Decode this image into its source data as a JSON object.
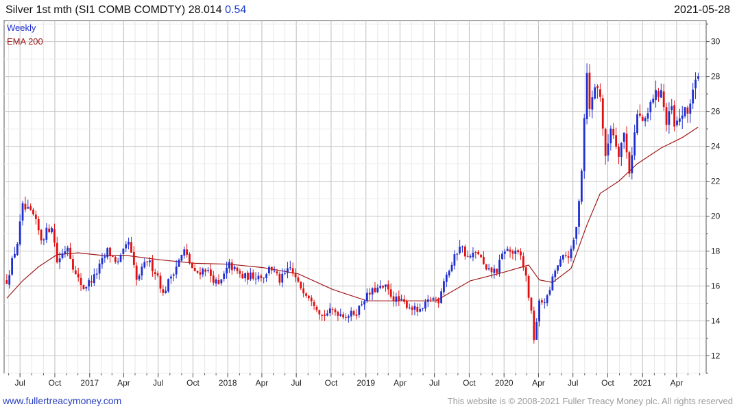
{
  "header": {
    "title": "Silver 1st mth (SI1 COMB COMDTY) 28.014",
    "change": "0.54",
    "date": "2021-05-28"
  },
  "footer": {
    "link_text": "www.fullertreacymoney.com",
    "copyright": "This website is © 2008-2021 Fuller Treacy Money plc. All rights reserved"
  },
  "colors": {
    "up_candle": "#1f2fd0",
    "down_candle": "#e01010",
    "ema": "#a01818",
    "legend_weekly": "#1f2fd0",
    "legend_ema": "#a01818",
    "grid": "#c8c8c8"
  },
  "chart_data": {
    "type": "candlestick",
    "title": "Silver 1st mth (SI1 COMB COMDTY)",
    "frequency": "Weekly",
    "legend": [
      "Weekly",
      "EMA 200"
    ],
    "legend_position": "top-left",
    "x_tick_labels": [
      "Jul",
      "Oct",
      "2017",
      "Apr",
      "Jul",
      "Oct",
      "2018",
      "Apr",
      "Jul",
      "Oct",
      "2019",
      "Apr",
      "Jul",
      "Oct",
      "2020",
      "Apr",
      "Jul",
      "Oct",
      "2021",
      "Apr"
    ],
    "y_ticks": [
      12,
      14,
      16,
      18,
      20,
      22,
      24,
      26,
      28,
      30
    ],
    "ylim": [
      11,
      31.2
    ],
    "grid": true,
    "y_axis_side": "right",
    "price_anchors": [
      [
        "2016-05-27",
        16.3
      ],
      [
        "2016-06-24",
        18.5
      ],
      [
        "2016-07-08",
        20.5
      ],
      [
        "2016-08-05",
        20.0
      ],
      [
        "2016-08-26",
        18.7
      ],
      [
        "2016-09-23",
        19.5
      ],
      [
        "2016-10-07",
        17.4
      ],
      [
        "2016-11-04",
        18.3
      ],
      [
        "2016-11-25",
        16.6
      ],
      [
        "2016-12-16",
        15.9
      ],
      [
        "2017-01-13",
        16.5
      ],
      [
        "2017-02-17",
        18.0
      ],
      [
        "2017-03-17",
        17.3
      ],
      [
        "2017-04-14",
        18.5
      ],
      [
        "2017-05-05",
        16.3
      ],
      [
        "2017-06-02",
        17.5
      ],
      [
        "2017-06-30",
        16.6
      ],
      [
        "2017-07-14",
        15.5
      ],
      [
        "2017-08-04",
        16.6
      ],
      [
        "2017-09-08",
        18.0
      ],
      [
        "2017-10-06",
        16.7
      ],
      [
        "2017-11-03",
        17.0
      ],
      [
        "2017-12-08",
        16.0
      ],
      [
        "2018-01-05",
        17.2
      ],
      [
        "2018-02-09",
        16.5
      ],
      [
        "2018-03-09",
        16.6
      ],
      [
        "2018-04-13",
        16.6
      ],
      [
        "2018-04-20",
        17.2
      ],
      [
        "2018-05-18",
        16.3
      ],
      [
        "2018-06-15",
        17.0
      ],
      [
        "2018-07-06",
        16.1
      ],
      [
        "2018-08-10",
        15.3
      ],
      [
        "2018-09-07",
        14.3
      ],
      [
        "2018-10-05",
        14.6
      ],
      [
        "2018-11-09",
        14.3
      ],
      [
        "2018-12-07",
        14.5
      ],
      [
        "2018-12-28",
        15.3
      ],
      [
        "2019-01-25",
        15.8
      ],
      [
        "2019-02-22",
        15.9
      ],
      [
        "2019-03-15",
        15.3
      ],
      [
        "2019-04-12",
        15.0
      ],
      [
        "2019-05-24",
        14.5
      ],
      [
        "2019-06-21",
        15.3
      ],
      [
        "2019-07-12",
        15.2
      ],
      [
        "2019-07-26",
        16.4
      ],
      [
        "2019-08-16",
        17.2
      ],
      [
        "2019-09-06",
        18.4
      ],
      [
        "2019-09-27",
        17.6
      ],
      [
        "2019-10-25",
        17.9
      ],
      [
        "2019-11-15",
        16.8
      ],
      [
        "2019-12-13",
        16.9
      ],
      [
        "2020-01-03",
        18.1
      ],
      [
        "2020-02-14",
        17.7
      ],
      [
        "2020-02-28",
        16.5
      ],
      [
        "2020-03-13",
        14.4
      ],
      [
        "2020-03-20",
        13.0
      ],
      [
        "2020-04-03",
        15.0
      ],
      [
        "2020-04-24",
        15.3
      ],
      [
        "2020-05-15",
        16.9
      ],
      [
        "2020-06-05",
        17.6
      ],
      [
        "2020-06-26",
        17.9
      ],
      [
        "2020-07-10",
        19.3
      ],
      [
        "2020-07-24",
        22.8
      ],
      [
        "2020-08-07",
        28.5
      ],
      [
        "2020-08-14",
        26.0
      ],
      [
        "2020-08-28",
        27.5
      ],
      [
        "2020-09-11",
        27.0
      ],
      [
        "2020-09-25",
        23.2
      ],
      [
        "2020-10-09",
        25.2
      ],
      [
        "2020-10-30",
        23.7
      ],
      [
        "2020-11-13",
        24.7
      ],
      [
        "2020-11-27",
        22.6
      ],
      [
        "2020-12-18",
        25.8
      ],
      [
        "2021-01-08",
        25.3
      ],
      [
        "2021-01-29",
        26.9
      ],
      [
        "2021-02-05",
        26.9
      ],
      [
        "2021-02-19",
        27.3
      ],
      [
        "2021-03-05",
        25.2
      ],
      [
        "2021-03-19",
        26.2
      ],
      [
        "2021-03-26",
        25.0
      ],
      [
        "2021-04-16",
        25.9
      ],
      [
        "2021-04-30",
        25.9
      ],
      [
        "2021-05-14",
        27.3
      ],
      [
        "2021-05-28",
        28.0
      ]
    ],
    "ema_points": [
      [
        "2016-05-27",
        15.3
      ],
      [
        "2016-07-08",
        16.3
      ],
      [
        "2016-08-19",
        17.1
      ],
      [
        "2016-10-07",
        17.8
      ],
      [
        "2016-12-02",
        17.9
      ],
      [
        "2017-02-03",
        17.75
      ],
      [
        "2017-04-07",
        17.75
      ],
      [
        "2017-07-07",
        17.5
      ],
      [
        "2017-10-06",
        17.3
      ],
      [
        "2018-01-05",
        17.25
      ],
      [
        "2018-04-06",
        17.05
      ],
      [
        "2018-07-06",
        16.7
      ],
      [
        "2018-10-05",
        15.8
      ],
      [
        "2019-01-04",
        15.15
      ],
      [
        "2019-04-05",
        15.15
      ],
      [
        "2019-07-05",
        15.15
      ],
      [
        "2019-10-04",
        16.3
      ],
      [
        "2020-01-03",
        16.8
      ],
      [
        "2020-03-06",
        17.2
      ],
      [
        "2020-04-03",
        16.35
      ],
      [
        "2020-05-08",
        16.2
      ],
      [
        "2020-06-26",
        17.0
      ],
      [
        "2020-08-07",
        19.5
      ],
      [
        "2020-09-11",
        21.3
      ],
      [
        "2020-10-30",
        22.0
      ],
      [
        "2020-12-18",
        23.0
      ],
      [
        "2021-02-19",
        23.9
      ],
      [
        "2021-04-16",
        24.5
      ],
      [
        "2021-05-28",
        25.1
      ]
    ]
  }
}
